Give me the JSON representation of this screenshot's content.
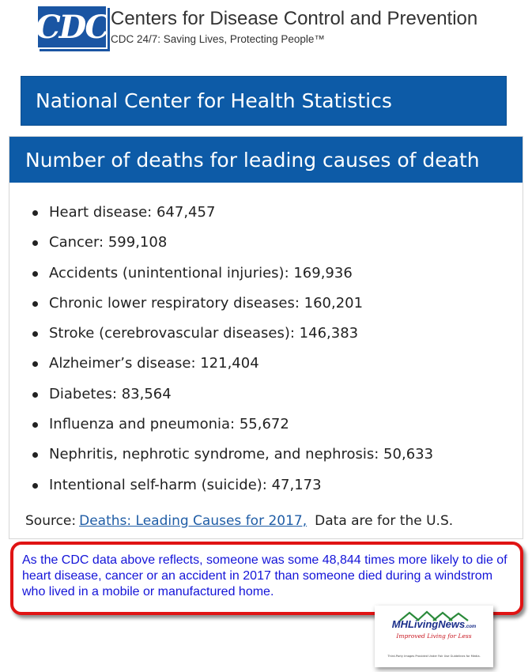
{
  "header": {
    "logo_text": "CDC",
    "org_name": "Centers for Disease Control and Prevention",
    "tagline": "CDC 24/7: Saving Lives, Protecting People™"
  },
  "banner": {
    "title": "National Center for Health Statistics"
  },
  "card": {
    "title": "Number of deaths for leading causes of death",
    "causes": [
      "Heart disease: 647,457",
      "Cancer: 599,108",
      "Accidents (unintentional injuries): 169,936",
      "Chronic lower respiratory diseases: 160,201",
      "Stroke (cerebrovascular diseases): 146,383",
      "Alzheimer’s disease: 121,404",
      "Diabetes: 83,564",
      "Influenza and pneumonia: 55,672",
      "Nephritis, nephrotic syndrome, and nephrosis: 50,633",
      "Intentional self-harm (suicide): 47,173"
    ],
    "source_label": "Source:",
    "source_link": "Deaths: Leading Causes for 2017,",
    "source_note": "Data are for the U.S."
  },
  "callout": {
    "text": "As the CDC data above reflects, someone was some 48,844 times more likely to die of heart disease, cancer or an accident in 2017 than someone died during a windstrom who lived in a mobile or manufactured home."
  },
  "badge": {
    "brand": "MHLivingNews",
    "domain": ".com",
    "slogan": "Improved Living for Less",
    "fineprint": "Third-Party Images Provided Under Fair Use Guidelines for Media."
  },
  "colors": {
    "cdc_blue": "#1a55a3",
    "banner_blue": "#0d5ba7",
    "link_blue": "#1f5da6",
    "callout_border": "#e01414",
    "callout_text": "#1414d8"
  }
}
